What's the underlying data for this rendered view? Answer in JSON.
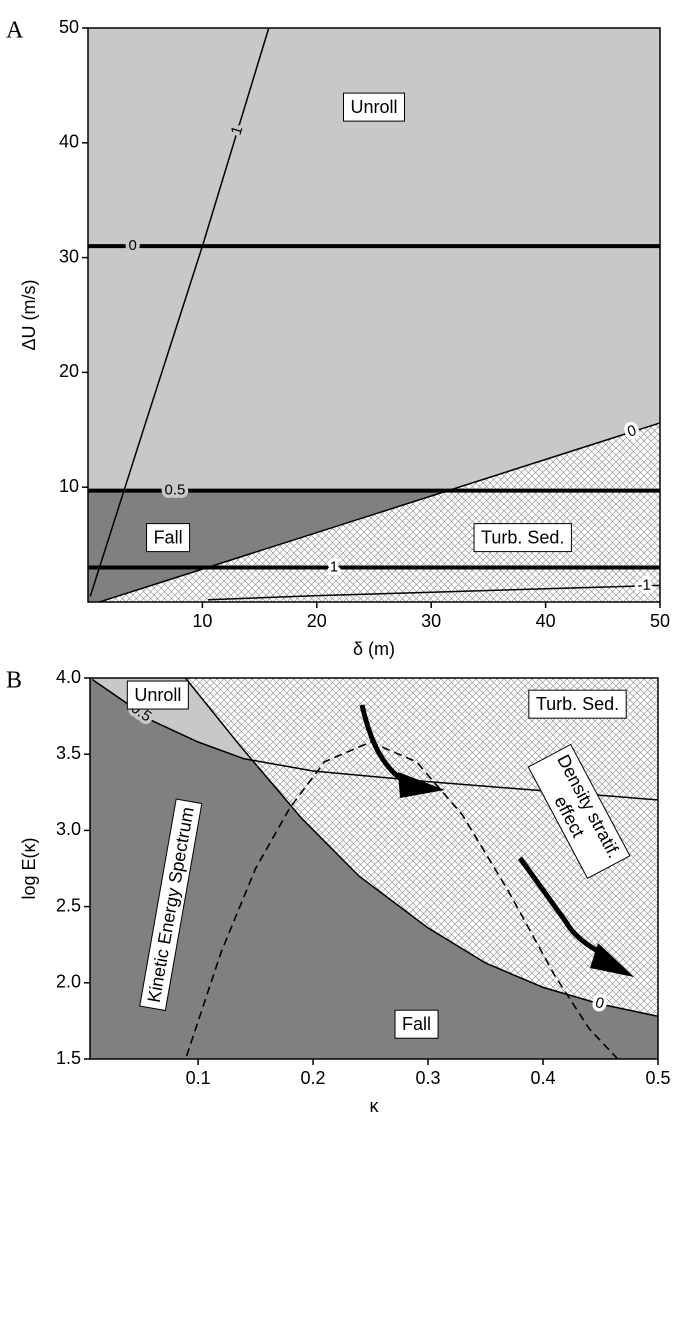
{
  "chart_data": [
    {
      "type": "contour",
      "panel_label": "A",
      "xlabel": "δ (m)",
      "ylabel": "ΔU (m/s)",
      "xlim": [
        0,
        50
      ],
      "ylim": [
        0,
        50
      ],
      "xticks": [
        10,
        20,
        30,
        40,
        50
      ],
      "yticks": [
        10,
        20,
        30,
        40,
        50
      ],
      "regions": [
        {
          "name": "Unroll",
          "color": "#c8c8c8"
        },
        {
          "name": "Fall",
          "color": "#808080"
        },
        {
          "name": "Turb. Sed.",
          "pattern": "crosshatch"
        }
      ],
      "contours": [
        {
          "level": 0,
          "style": "thick",
          "x": [
            0,
            50
          ],
          "y": [
            31,
            31
          ]
        },
        {
          "level": 0.5,
          "style": "thick",
          "x": [
            0,
            50
          ],
          "y": [
            9.7,
            9.7
          ]
        },
        {
          "level": 1,
          "style": "thick",
          "x": [
            0,
            50
          ],
          "y": [
            3,
            3
          ]
        },
        {
          "level": 1,
          "style": "thin",
          "x": [
            0.2,
            5,
            10,
            15.8
          ],
          "y": [
            0.5,
            15.5,
            31,
            50
          ]
        },
        {
          "level": 0,
          "style": "thin",
          "x": [
            1,
            50
          ],
          "y": [
            0,
            15.6
          ]
        },
        {
          "level": -1,
          "style": "thin",
          "x": [
            10.5,
            20,
            30,
            40,
            50
          ],
          "y": [
            0.2,
            0.55,
            0.85,
            1.15,
            1.45
          ]
        }
      ]
    },
    {
      "type": "contour",
      "panel_label": "B",
      "xlabel": "κ",
      "ylabel": "log E(κ)",
      "xlim": [
        0.006,
        0.5
      ],
      "ylim": [
        1.5,
        4.0
      ],
      "xticks": [
        0.1,
        0.2,
        0.3,
        0.4,
        0.5
      ],
      "yticks": [
        1.5,
        {
          "value": 2,
          "label": "2.0"
        },
        2.5,
        {
          "value": 3,
          "label": "3.0"
        },
        3.5,
        {
          "value": 4,
          "label": "4.0"
        }
      ],
      "regions": [
        {
          "name": "Unroll",
          "color": "#c8c8c8"
        },
        {
          "name": "Fall",
          "color": "#808080"
        },
        {
          "name": "Turb. Sed.",
          "pattern": "crosshatch"
        }
      ],
      "contours": [
        {
          "level": 0.5,
          "style": "thin",
          "x": [
            0.008,
            0.06,
            0.1,
            0.14,
            0.2,
            0.3,
            0.4,
            0.5
          ],
          "y": [
            3.99,
            3.72,
            3.58,
            3.47,
            3.39,
            3.32,
            3.26,
            3.2
          ]
        },
        {
          "level": 0,
          "style": "thin",
          "x": [
            0.089,
            0.136,
            0.19,
            0.24,
            0.3,
            0.35,
            0.4,
            0.45,
            0.5
          ],
          "y": [
            4.0,
            3.56,
            3.08,
            2.7,
            2.36,
            2.13,
            1.97,
            1.86,
            1.78
          ]
        }
      ],
      "lines": [
        {
          "style": "dashed",
          "x": [
            0.09,
            0.12,
            0.15,
            0.18,
            0.21,
            0.25,
            0.29,
            0.33,
            0.37,
            0.41,
            0.44,
            0.465
          ],
          "y": [
            1.52,
            2.2,
            2.75,
            3.15,
            3.45,
            3.58,
            3.45,
            3.1,
            2.6,
            2.05,
            1.7,
            1.5
          ]
        }
      ],
      "annotations": [
        [
          "Kinetic Energy Spectrum"
        ],
        [
          "Density stratif.",
          "effect"
        ]
      ]
    }
  ]
}
